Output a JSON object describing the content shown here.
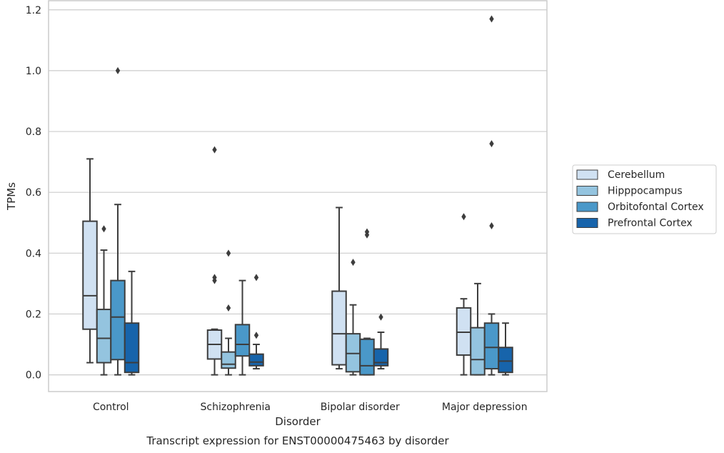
{
  "chart_data": {
    "type": "boxplot",
    "caption": "Transcript expression for ENST00000475463 by disorder",
    "xlabel": "Disorder",
    "ylabel": "TPMs",
    "ylim": [
      -0.055,
      1.23
    ],
    "yticks": [
      0.0,
      0.2,
      0.4,
      0.6,
      0.8,
      1.0,
      1.2
    ],
    "ytick_labels": [
      "0.0",
      "0.2",
      "0.4",
      "0.6",
      "0.8",
      "1.0",
      "1.2"
    ],
    "grid": true,
    "legend_position": "right",
    "categories": [
      "Control",
      "Schizophrenia",
      "Bipolar disorder",
      "Major depression"
    ],
    "series": [
      {
        "name": "Cerebellum",
        "color": "#d0e1f2",
        "boxes": [
          {
            "whislo": 0.04,
            "q1": 0.15,
            "med": 0.26,
            "q3": 0.505,
            "whishi": 0.71,
            "fliers": []
          },
          {
            "whislo": 0.0,
            "q1": 0.052,
            "med": 0.1,
            "q3": 0.147,
            "whishi": 0.15,
            "fliers": [
              0.31,
              0.32,
              0.74
            ]
          },
          {
            "whislo": 0.02,
            "q1": 0.033,
            "med": 0.135,
            "q3": 0.275,
            "whishi": 0.55,
            "fliers": []
          },
          {
            "whislo": 0.0,
            "q1": 0.065,
            "med": 0.14,
            "q3": 0.22,
            "whishi": 0.25,
            "fliers": [
              0.52
            ]
          }
        ]
      },
      {
        "name": "Hipppocampus",
        "color": "#94c4df",
        "boxes": [
          {
            "whislo": 0.0,
            "q1": 0.04,
            "med": 0.12,
            "q3": 0.215,
            "whishi": 0.41,
            "fliers": [
              0.48
            ]
          },
          {
            "whislo": 0.0,
            "q1": 0.022,
            "med": 0.035,
            "q3": 0.075,
            "whishi": 0.12,
            "fliers": [
              0.22,
              0.4
            ]
          },
          {
            "whislo": 0.0,
            "q1": 0.01,
            "med": 0.07,
            "q3": 0.135,
            "whishi": 0.23,
            "fliers": [
              0.37
            ]
          },
          {
            "whislo": 0.0,
            "q1": 0.0,
            "med": 0.05,
            "q3": 0.155,
            "whishi": 0.3,
            "fliers": []
          }
        ]
      },
      {
        "name": "Orbitofontal Cortex",
        "color": "#4a98c9",
        "boxes": [
          {
            "whislo": 0.0,
            "q1": 0.05,
            "med": 0.19,
            "q3": 0.31,
            "whishi": 0.56,
            "fliers": [
              1.0
            ]
          },
          {
            "whislo": 0.0,
            "q1": 0.062,
            "med": 0.1,
            "q3": 0.165,
            "whishi": 0.31,
            "fliers": []
          },
          {
            "whislo": 0.0,
            "q1": 0.0,
            "med": 0.03,
            "q3": 0.117,
            "whishi": 0.12,
            "fliers": [
              0.46,
              0.47
            ]
          },
          {
            "whislo": 0.0,
            "q1": 0.02,
            "med": 0.09,
            "q3": 0.17,
            "whishi": 0.2,
            "fliers": [
              0.49,
              0.76,
              1.17
            ]
          }
        ]
      },
      {
        "name": "Prefrontal Cortex",
        "color": "#1764ab",
        "boxes": [
          {
            "whislo": 0.0,
            "q1": 0.008,
            "med": 0.04,
            "q3": 0.17,
            "whishi": 0.34,
            "fliers": []
          },
          {
            "whislo": 0.02,
            "q1": 0.03,
            "med": 0.042,
            "q3": 0.068,
            "whishi": 0.1,
            "fliers": [
              0.13,
              0.32
            ]
          },
          {
            "whislo": 0.02,
            "q1": 0.03,
            "med": 0.04,
            "q3": 0.085,
            "whishi": 0.14,
            "fliers": [
              0.19
            ]
          },
          {
            "whislo": 0.0,
            "q1": 0.008,
            "med": 0.045,
            "q3": 0.09,
            "whishi": 0.17,
            "fliers": []
          }
        ]
      }
    ]
  }
}
